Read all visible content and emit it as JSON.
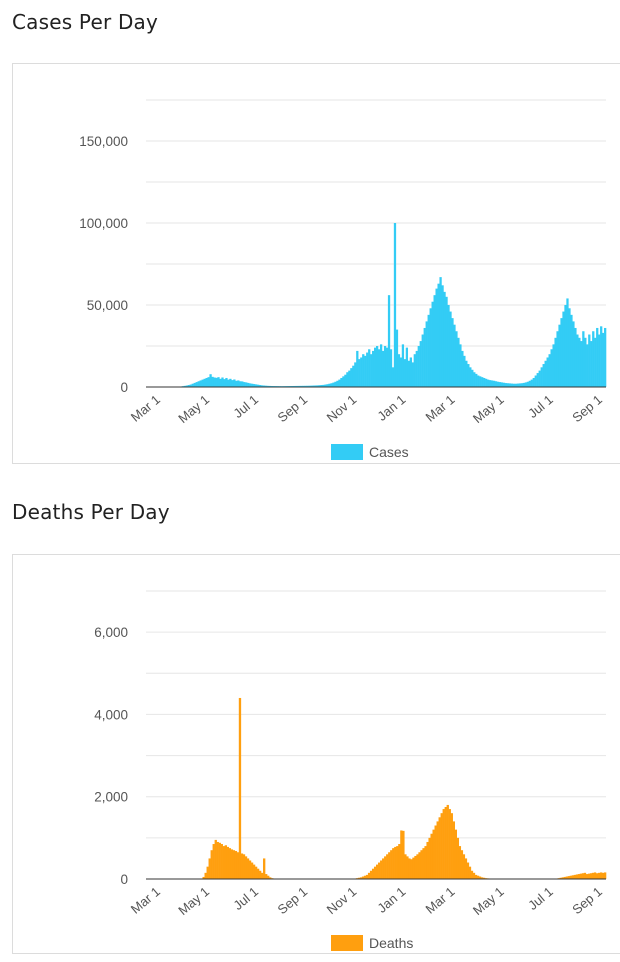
{
  "colors": {
    "cases": "#33ccf5",
    "deaths": "#ff9f0f",
    "grid": "#e6e6e6",
    "axis": "#333333"
  },
  "sections": [
    {
      "title": "Cases Per Day"
    },
    {
      "title": "Deaths Per Day"
    }
  ],
  "chart_data": [
    {
      "type": "bar",
      "title": "Cases Per Day",
      "xlabel": "",
      "ylabel": "",
      "x_ticks": [
        "Mar 1",
        "May 1",
        "Jul 1",
        "Sep 1",
        "Nov 1",
        "Jan 1",
        "Mar 1",
        "May 1",
        "Jul 1",
        "Sep 1"
      ],
      "y_ticks": [
        "0",
        "50,000",
        "100,000",
        "150,000"
      ],
      "ylim": [
        0,
        175000
      ],
      "grid": true,
      "legend": "bottom",
      "series": [
        {
          "name": "Cases",
          "color": "#33ccf5",
          "values": [
            0,
            0,
            0,
            0,
            0,
            0,
            0,
            0,
            0,
            0,
            0,
            0,
            0,
            0,
            100,
            150,
            200,
            300,
            500,
            700,
            900,
            1200,
            1500,
            2000,
            2500,
            3000,
            3500,
            4000,
            4500,
            5000,
            5500,
            6000,
            7800,
            6200,
            5800,
            5600,
            6000,
            5000,
            5800,
            4800,
            5500,
            4500,
            5000,
            4200,
            4600,
            3800,
            4000,
            3500,
            3400,
            3000,
            2800,
            2500,
            2200,
            2000,
            1800,
            1600,
            1400,
            1200,
            1000,
            900,
            800,
            700,
            650,
            600,
            580,
            560,
            540,
            520,
            500,
            520,
            540,
            560,
            580,
            600,
            620,
            640,
            660,
            680,
            700,
            720,
            740,
            760,
            800,
            850,
            900,
            950,
            1000,
            1100,
            1200,
            1300,
            1500,
            1700,
            2000,
            2300,
            2700,
            3200,
            3800,
            4500,
            5500,
            6500,
            7500,
            9000,
            10000,
            11500,
            13000,
            15000,
            22000,
            17000,
            18000,
            20000,
            19000,
            21000,
            23000,
            20000,
            22000,
            24000,
            25000,
            23000,
            26000,
            22000,
            25000,
            24000,
            56000,
            23000,
            12000,
            100000,
            35000,
            20000,
            18000,
            26000,
            17000,
            24000,
            16000,
            18000,
            15000,
            20000,
            22000,
            25000,
            28000,
            32000,
            36000,
            40000,
            44000,
            48000,
            52000,
            56000,
            60000,
            63000,
            67000,
            62000,
            58000,
            55000,
            50000,
            46000,
            42000,
            38000,
            34000,
            30000,
            26000,
            22000,
            19000,
            16000,
            14000,
            12000,
            10500,
            9000,
            8000,
            7000,
            6500,
            6000,
            5500,
            5000,
            4500,
            4200,
            4000,
            3800,
            3500,
            3200,
            3000,
            2800,
            2600,
            2400,
            2300,
            2200,
            2100,
            2000,
            2000,
            2100,
            2200,
            2300,
            2500,
            2800,
            3200,
            3800,
            4500,
            5500,
            7000,
            8500,
            10000,
            12000,
            14000,
            16000,
            18000,
            20000,
            23000,
            26000,
            30000,
            34000,
            38000,
            42000,
            46000,
            50000,
            54000,
            48000,
            44000,
            40000,
            36000,
            32000,
            30000,
            28000,
            34000,
            30000,
            26000,
            32000,
            28000,
            34000,
            30000,
            36000,
            32000,
            37000,
            33000,
            36000
          ]
        }
      ]
    },
    {
      "type": "bar",
      "title": "Deaths Per Day",
      "xlabel": "",
      "ylabel": "",
      "x_ticks": [
        "Mar 1",
        "May 1",
        "Jul 1",
        "Sep 1",
        "Nov 1",
        "Jan 1",
        "Mar 1",
        "May 1",
        "Jul 1",
        "Sep 1"
      ],
      "y_ticks": [
        "0",
        "2,000",
        "4,000",
        "6,000"
      ],
      "ylim": [
        0,
        7000
      ],
      "grid": true,
      "legend": "bottom",
      "series": [
        {
          "name": "Deaths",
          "color": "#ff9f0f",
          "values": [
            0,
            0,
            0,
            0,
            0,
            0,
            0,
            0,
            0,
            0,
            0,
            0,
            0,
            0,
            0,
            0,
            0,
            0,
            0,
            0,
            0,
            0,
            0,
            0,
            0,
            0,
            0,
            10,
            50,
            150,
            300,
            500,
            700,
            850,
            950,
            900,
            880,
            850,
            800,
            820,
            780,
            750,
            720,
            700,
            680,
            650,
            4400,
            620,
            600,
            550,
            500,
            450,
            400,
            350,
            300,
            250,
            200,
            150,
            500,
            120,
            80,
            40,
            20,
            10,
            5,
            0,
            0,
            0,
            0,
            0,
            0,
            0,
            0,
            0,
            0,
            0,
            0,
            0,
            0,
            0,
            0,
            0,
            0,
            0,
            0,
            0,
            0,
            0,
            0,
            0,
            0,
            0,
            0,
            0,
            0,
            0,
            0,
            0,
            0,
            0,
            0,
            0,
            0,
            10,
            20,
            30,
            40,
            60,
            80,
            100,
            150,
            200,
            250,
            300,
            350,
            400,
            450,
            500,
            550,
            600,
            650,
            700,
            750,
            780,
            800,
            850,
            1180,
            1170,
            600,
            550,
            500,
            480,
            520,
            560,
            600,
            650,
            700,
            750,
            800,
            900,
            1000,
            1100,
            1200,
            1300,
            1400,
            1500,
            1600,
            1700,
            1750,
            1800,
            1700,
            1600,
            1400,
            1200,
            1000,
            800,
            700,
            600,
            500,
            400,
            300,
            200,
            150,
            100,
            80,
            60,
            40,
            30,
            20,
            15,
            10,
            10,
            10,
            10,
            10,
            10,
            10,
            10,
            10,
            10,
            10,
            10,
            10,
            10,
            10,
            10,
            10,
            10,
            10,
            10,
            10,
            10,
            10,
            10,
            10,
            10,
            10,
            10,
            10,
            10,
            10,
            10,
            10,
            10,
            20,
            30,
            40,
            50,
            60,
            70,
            80,
            90,
            100,
            110,
            120,
            130,
            140,
            150,
            120,
            130,
            140,
            150,
            160,
            140,
            150,
            160,
            150,
            160
          ]
        }
      ]
    }
  ]
}
